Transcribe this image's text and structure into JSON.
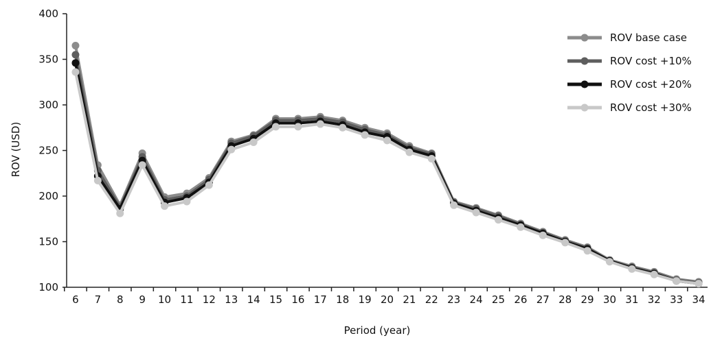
{
  "chart_data": {
    "type": "line",
    "title": "",
    "xlabel": "Period (year)",
    "ylabel": "ROV (USD)",
    "x": [
      6,
      7,
      8,
      9,
      10,
      11,
      12,
      13,
      14,
      15,
      16,
      17,
      18,
      19,
      20,
      21,
      22,
      23,
      24,
      25,
      26,
      27,
      28,
      29,
      30,
      31,
      32,
      33,
      34
    ],
    "xlim": [
      5.6,
      34.4
    ],
    "ylim": [
      100,
      400
    ],
    "yticks": [
      100,
      150,
      200,
      250,
      300,
      350,
      400
    ],
    "grid": false,
    "legend_position": "top-right",
    "series": [
      {
        "name": "ROV base case",
        "color": "#8c8c8c",
        "values": [
          365,
          234,
          190,
          247,
          199,
          203,
          220,
          260,
          267,
          285,
          285,
          287,
          283,
          275,
          269,
          255,
          247,
          194,
          187,
          179,
          170,
          161,
          152,
          144,
          130,
          123,
          117,
          109,
          106
        ]
      },
      {
        "name": "ROV cost +10%",
        "color": "#5e5e5e",
        "values": [
          355,
          228,
          188,
          243,
          196,
          200,
          218,
          258,
          266,
          283,
          283,
          285,
          281,
          273,
          267,
          253,
          246,
          193,
          186,
          178,
          169,
          160,
          151,
          143,
          129,
          122,
          116,
          108,
          105
        ]
      },
      {
        "name": "ROV cost +20%",
        "color": "#111111",
        "values": [
          346,
          222,
          186,
          239,
          193,
          198,
          215,
          255,
          263,
          280,
          280,
          282,
          278,
          270,
          265,
          251,
          244,
          192,
          184,
          176,
          168,
          159,
          150,
          142,
          129,
          121,
          115,
          107,
          104
        ]
      },
      {
        "name": "ROV cost +30%",
        "color": "#c8c8c8",
        "values": [
          336,
          217,
          181,
          234,
          189,
          194,
          212,
          251,
          259,
          276,
          276,
          279,
          275,
          267,
          261,
          248,
          241,
          190,
          182,
          174,
          166,
          157,
          149,
          140,
          128,
          120,
          114,
          107,
          104
        ]
      }
    ]
  }
}
